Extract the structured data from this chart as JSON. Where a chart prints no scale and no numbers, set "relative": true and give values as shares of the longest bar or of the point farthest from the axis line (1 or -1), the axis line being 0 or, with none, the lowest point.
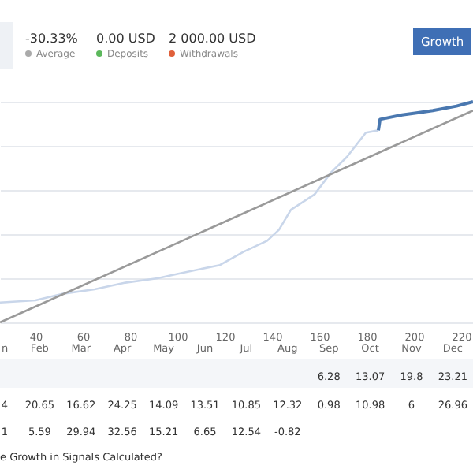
{
  "chart_data": {
    "type": "line",
    "relative": true,
    "grid": "y",
    "xlim": [
      25,
      225
    ],
    "xticks": [
      40,
      60,
      80,
      100,
      120,
      140,
      160,
      180,
      200,
      220
    ],
    "series": [
      {
        "color": "#c9d6ea",
        "x": [
          25,
          40,
          51.7,
          65,
          78,
          91.7,
          100,
          118,
          128,
          138,
          143,
          148,
          158,
          165,
          171.7,
          179.7,
          185
        ],
        "values": [
          0.09,
          0.1,
          0.13,
          0.15,
          0.18,
          0.2,
          0.22,
          0.26,
          0.32,
          0.37,
          0.42,
          0.51,
          0.58,
          0.68,
          0.75,
          0.86,
          0.87
        ]
      },
      {
        "color": "#4a78b0",
        "x": [
          185,
          185.7,
          195,
          201.7,
          208,
          218,
          225
        ],
        "values": [
          0.87,
          0.92,
          0.94,
          0.95,
          0.96,
          0.98,
          1.0
        ]
      },
      {
        "color": "#9a9a9a",
        "x": [
          25,
          225
        ],
        "values": [
          0,
          0.96
        ]
      }
    ],
    "annotations": [
      "-30.33%",
      "Average",
      "0.00 USD",
      "Deposits",
      "2 000.00 USD",
      "Withdrawals",
      "Growth",
      "n",
      "Feb",
      "Mar",
      "Apr",
      "May",
      "Jun",
      "Jul",
      "Aug",
      "Sep",
      "Oct",
      "Nov",
      "Dec",
      "6.28",
      "13.07",
      "19.8",
      "23.21",
      "4",
      "20.65",
      "16.62",
      "24.25",
      "14.09",
      "13.51",
      "10.85",
      "12.32",
      "0.98",
      "10.98",
      "6",
      "26.96",
      "1",
      "5.59",
      "29.94",
      "32.56",
      "15.21",
      "6.65",
      "12.54",
      "-0.82",
      "e Growth in Signals Calculated?"
    ]
  }
}
